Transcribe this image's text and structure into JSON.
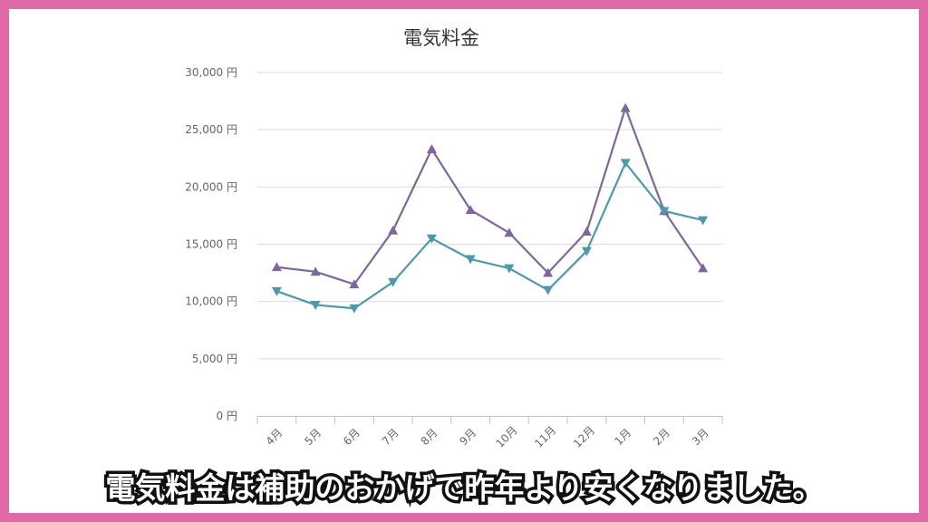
{
  "caption": "電気料金は補助のおかげで昨年より安くなりました。",
  "colors": {
    "frame": "#e069a8",
    "series_purple": "#7e67a0",
    "series_teal": "#4a9aab"
  },
  "chart_data": {
    "type": "line",
    "title": "電気料金",
    "xlabel": "",
    "ylabel": "",
    "ylim": [
      0,
      30000
    ],
    "yticks": [
      "0 円",
      "5,000 円",
      "10,000 円",
      "15,000 円",
      "20,000 円",
      "25,000 円",
      "30,000 円"
    ],
    "grid": true,
    "categories": [
      "4月",
      "5月",
      "6月",
      "7月",
      "8月",
      "9月",
      "10月",
      "11月",
      "12月",
      "1月",
      "2月",
      "3月"
    ],
    "series": [
      {
        "values": [
          13000,
          12600,
          11500,
          16200,
          23300,
          18000,
          16000,
          12500,
          16100,
          26900,
          17900,
          12900
        ],
        "marker": "triangle-up",
        "color": "#7e67a0"
      },
      {
        "values": [
          10900,
          9700,
          9400,
          11700,
          15500,
          13700,
          12900,
          11000,
          14400,
          22100,
          17900,
          17100
        ],
        "marker": "triangle-down",
        "color": "#4a9aab"
      }
    ]
  }
}
